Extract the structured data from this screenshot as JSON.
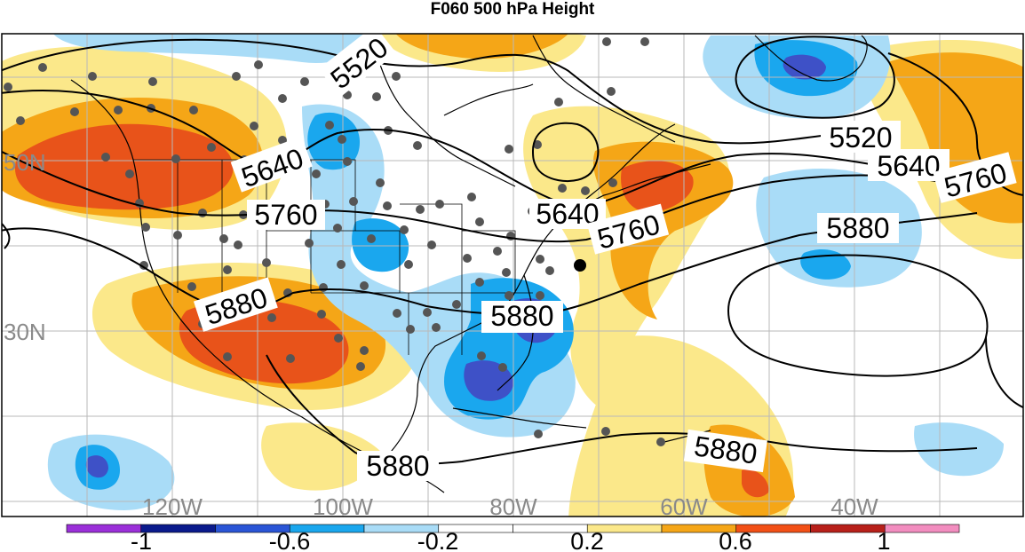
{
  "title": "F060 500 hPa Height",
  "lat_labels": [
    "50N",
    "30N"
  ],
  "lon_labels": [
    "120W",
    "100W",
    "80W",
    "60W",
    "40W"
  ],
  "contour_labels": [
    "5520",
    "5520",
    "5640",
    "5640",
    "5640",
    "5760",
    "5760",
    "5760",
    "5880",
    "5880",
    "5880",
    "5880",
    "5880"
  ],
  "colorbar": {
    "tick_labels": [
      "-1",
      "-0.6",
      "-0.2",
      "0.2",
      "0.6",
      "1"
    ],
    "colors": [
      "#9b30d9",
      "#0a1a8c",
      "#2a55d6",
      "#1aa7ee",
      "#a9dcf7",
      "#ffffff",
      "#ffffff",
      "#fbe88a",
      "#f5a617",
      "#f25016",
      "#b8201a",
      "#f28dbf"
    ]
  },
  "colors": {
    "strong_negative": "#3e51c7",
    "negative": "#1aa7ee",
    "weak_negative": "#a9dcf7",
    "weak_positive": "#fbe88a",
    "positive": "#f5a617",
    "strong_positive": "#e8531a"
  }
}
